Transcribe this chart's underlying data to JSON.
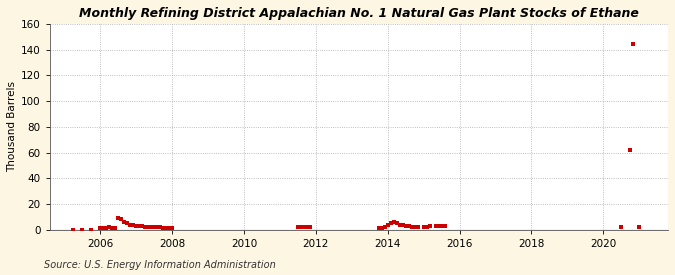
{
  "title": "Monthly Refining District Appalachian No. 1 Natural Gas Plant Stocks of Ethane",
  "ylabel": "Thousand Barrels",
  "source": "Source: U.S. Energy Information Administration",
  "background_color": "#fdf6e3",
  "plot_background": "#ffffff",
  "marker_color": "#cc0000",
  "ylim": [
    0,
    160
  ],
  "yticks": [
    0,
    20,
    40,
    60,
    80,
    100,
    120,
    140,
    160
  ],
  "xlim_start": 2004.6,
  "xlim_end": 2021.8,
  "xticks": [
    2006,
    2008,
    2010,
    2012,
    2014,
    2016,
    2018,
    2020
  ],
  "title_fontsize": 9.0,
  "axis_fontsize": 7.5,
  "source_fontsize": 7.0,
  "data_points": [
    [
      2005.25,
      0
    ],
    [
      2005.5,
      0
    ],
    [
      2005.75,
      0
    ],
    [
      2006.0,
      1
    ],
    [
      2006.083,
      1
    ],
    [
      2006.167,
      1
    ],
    [
      2006.25,
      2
    ],
    [
      2006.333,
      1
    ],
    [
      2006.417,
      1
    ],
    [
      2006.5,
      9
    ],
    [
      2006.583,
      8
    ],
    [
      2006.667,
      6
    ],
    [
      2006.75,
      5
    ],
    [
      2006.833,
      4
    ],
    [
      2006.917,
      4
    ],
    [
      2007.0,
      3
    ],
    [
      2007.083,
      3
    ],
    [
      2007.167,
      3
    ],
    [
      2007.25,
      2
    ],
    [
      2007.333,
      2
    ],
    [
      2007.417,
      2
    ],
    [
      2007.5,
      2
    ],
    [
      2007.583,
      2
    ],
    [
      2007.667,
      2
    ],
    [
      2007.75,
      1
    ],
    [
      2007.833,
      1
    ],
    [
      2007.917,
      1
    ],
    [
      2008.0,
      1
    ],
    [
      2011.5,
      2
    ],
    [
      2011.583,
      2
    ],
    [
      2011.667,
      2
    ],
    [
      2011.75,
      2
    ],
    [
      2011.833,
      2
    ],
    [
      2013.75,
      1
    ],
    [
      2013.833,
      1
    ],
    [
      2013.917,
      2
    ],
    [
      2014.0,
      4
    ],
    [
      2014.083,
      5
    ],
    [
      2014.167,
      6
    ],
    [
      2014.25,
      5
    ],
    [
      2014.333,
      4
    ],
    [
      2014.417,
      4
    ],
    [
      2014.5,
      3
    ],
    [
      2014.583,
      3
    ],
    [
      2014.667,
      2
    ],
    [
      2014.75,
      2
    ],
    [
      2014.833,
      2
    ],
    [
      2015.0,
      2
    ],
    [
      2015.083,
      2
    ],
    [
      2015.167,
      3
    ],
    [
      2015.333,
      3
    ],
    [
      2015.417,
      3
    ],
    [
      2015.5,
      3
    ],
    [
      2015.583,
      3
    ],
    [
      2020.5,
      2
    ],
    [
      2020.75,
      62
    ],
    [
      2020.833,
      144
    ],
    [
      2021.0,
      2
    ]
  ]
}
